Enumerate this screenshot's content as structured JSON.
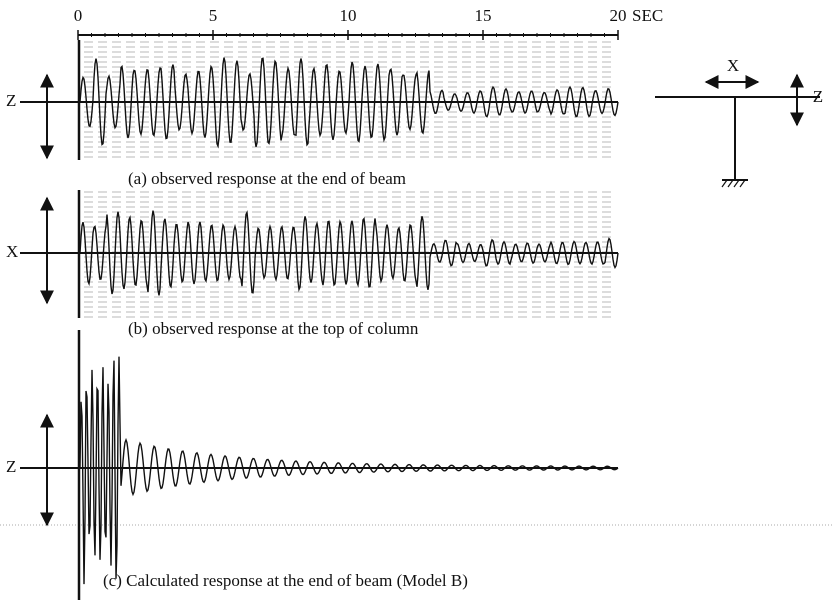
{
  "time_axis": {
    "ticks": [
      "0",
      "5",
      "10",
      "15",
      "20"
    ],
    "unit": "SEC"
  },
  "panels": [
    {
      "axis_label": "Z",
      "caption": "(a) observed response at the end of beam"
    },
    {
      "axis_label": "X",
      "caption": "(b) observed response at the top of column"
    },
    {
      "axis_label": "Z",
      "caption": "(c) Calculated response at the end of beam (Model B)"
    }
  ],
  "structure": {
    "x_label": "X",
    "z_label": "Z"
  }
}
